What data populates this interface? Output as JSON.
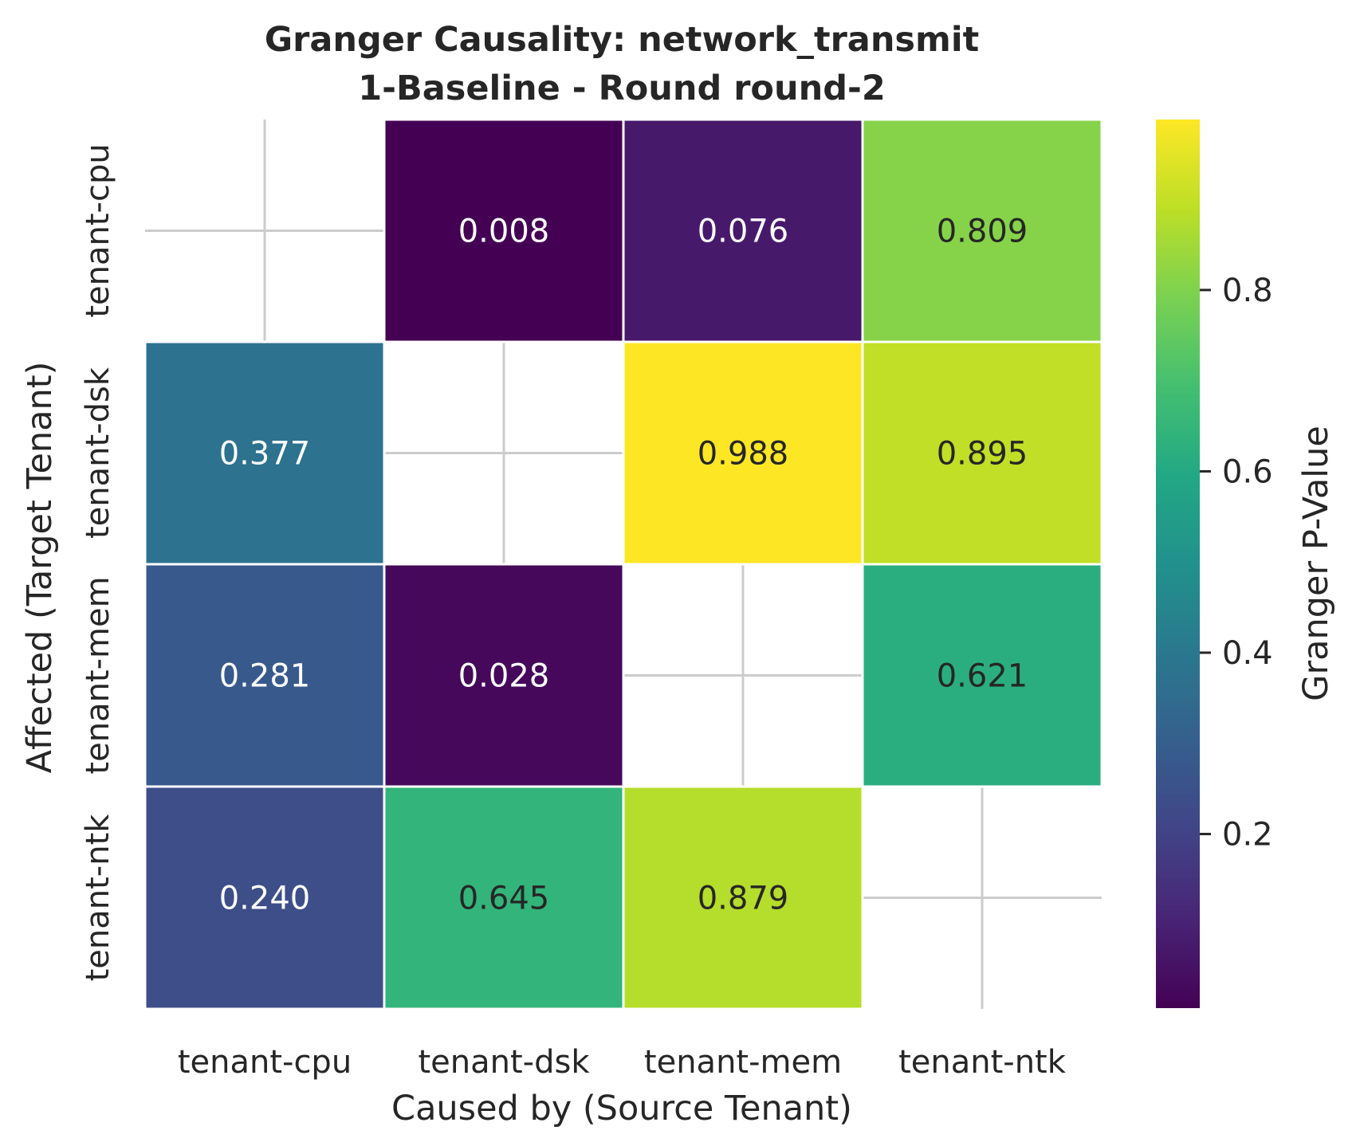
{
  "chart_data": {
    "type": "heatmap",
    "title": "Granger Causality: network_transmit",
    "subtitle": "1-Baseline - Round round-2",
    "xlabel": "Caused by (Source Tenant)",
    "ylabel": "Affected (Target Tenant)",
    "x_categories": [
      "tenant-cpu",
      "tenant-dsk",
      "tenant-mem",
      "tenant-ntk"
    ],
    "y_categories": [
      "tenant-cpu",
      "tenant-dsk",
      "tenant-mem",
      "tenant-ntk"
    ],
    "values": [
      [
        null,
        0.008,
        0.076,
        0.809
      ],
      [
        0.377,
        null,
        0.988,
        0.895
      ],
      [
        0.281,
        0.028,
        null,
        0.621
      ],
      [
        0.24,
        0.645,
        0.879,
        null
      ]
    ],
    "value_labels": [
      [
        "",
        "0.008",
        "0.076",
        "0.809"
      ],
      [
        "0.377",
        "",
        "0.988",
        "0.895"
      ],
      [
        "0.281",
        "0.028",
        "",
        "0.621"
      ],
      [
        "0.240",
        "0.645",
        "0.879",
        ""
      ]
    ],
    "colormap": "viridis",
    "color_range": [
      0.008,
      0.988
    ],
    "colorbar": {
      "label": "Granger P-Value",
      "ticks": [
        0.2,
        0.4,
        0.6,
        0.8
      ],
      "tick_labels": [
        "0.2",
        "0.4",
        "0.6",
        "0.8"
      ]
    },
    "grid": true
  }
}
